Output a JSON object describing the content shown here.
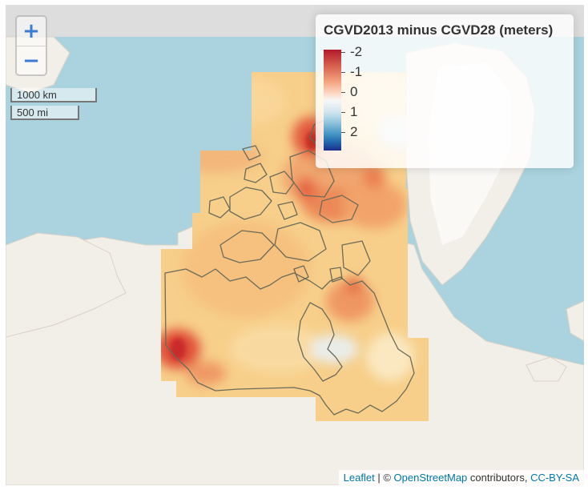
{
  "zoom": {
    "in_label": "+",
    "out_label": "−"
  },
  "scale": {
    "metric": "1000 km",
    "imperial": "500 mi"
  },
  "legend": {
    "title": "CGVD2013 minus CGVD28 (meters)",
    "ticks": [
      "-2",
      "-1",
      "0",
      "1",
      "2"
    ],
    "colors": {
      "min": "#b2182b",
      "mid": "#f7f7f7",
      "max": "#2166ac"
    }
  },
  "attribution": {
    "leaflet": "Leaflet",
    "sep": " | © ",
    "osm": "OpenStreetMap",
    "contrib": " contributors, ",
    "license": "CC-BY-SA"
  },
  "colors": {
    "water": "#aad3df",
    "land": "#f2efe9",
    "overlay_base": "#f6c987",
    "overlay_high": "#d73027"
  }
}
